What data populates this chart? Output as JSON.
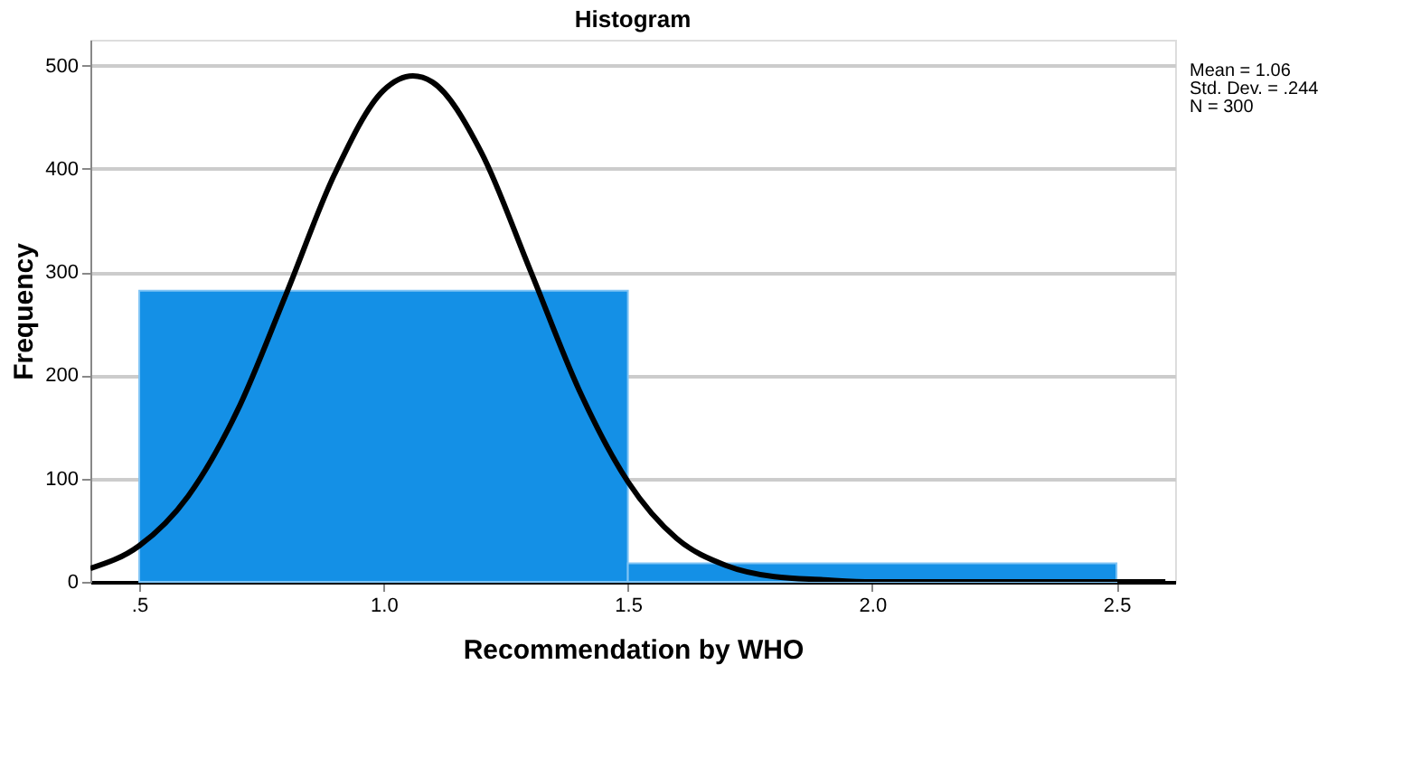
{
  "chart_data": {
    "type": "histogram",
    "title": "Histogram",
    "xlabel": "Recommendation by WHO",
    "ylabel": "Frequency",
    "bins": [
      0.5,
      1.5,
      2.5
    ],
    "values": [
      282,
      18
    ],
    "color": "#1490e6",
    "series": [
      {
        "type": "line",
        "color": "#000000",
        "x": [
          0.4,
          0.5,
          0.6,
          0.7,
          0.8,
          0.9,
          1.0,
          1.06,
          1.1,
          1.2,
          1.3,
          1.4,
          1.5,
          1.6,
          1.7,
          1.8,
          1.9,
          2.0,
          2.2,
          2.4,
          2.6
        ],
        "values": [
          13,
          35,
          83,
          165,
          278,
          395,
          476,
          490,
          484,
          416,
          302,
          186,
          97,
          42,
          16,
          5,
          2,
          0,
          0,
          0,
          0
        ]
      }
    ],
    "xlim": [
      0.4,
      2.62
    ],
    "xticks": [
      {
        "value": 0.5,
        "label": ".5"
      },
      {
        "value": 1.0,
        "label": "1.0"
      },
      {
        "value": 1.5,
        "label": "1.5"
      },
      {
        "value": 2.0,
        "label": "2.0"
      },
      {
        "value": 2.5,
        "label": "2.5"
      }
    ],
    "ylim": [
      0,
      525
    ],
    "yticks": [
      0,
      100,
      200,
      300,
      400,
      500
    ],
    "grid": "y",
    "annotations": [
      "Mean = 1.06",
      "Std. Dev. = .244",
      "N = 300"
    ]
  }
}
